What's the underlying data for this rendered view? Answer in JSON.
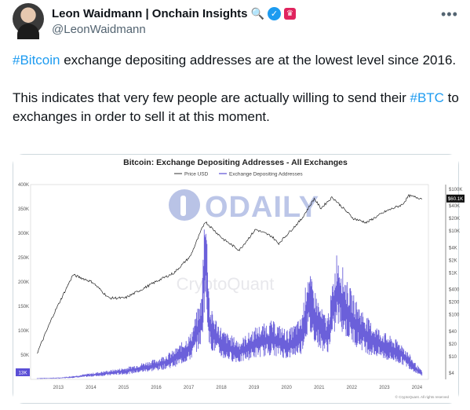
{
  "author": {
    "display_name": "Leon Waidmann | Onchain Insights",
    "handle": "@LeonWaidmann",
    "name_emoji": "🔍",
    "verified_badge_icon": "check-icon",
    "affiliation_badge_icon": "red-square-icon",
    "more_icon": "ellipsis-icon"
  },
  "tweet": {
    "line1_hashtag": "#Bitcoin",
    "line1_rest": " exchange depositing addresses are at the lowest level since 2016.",
    "line2_pre": "This indicates that very few people are actually willing to send their ",
    "line2_hashtag": "#BTC",
    "line2_rest": " to exchanges in order to sell it at this moment."
  },
  "chart_data": {
    "type": "line",
    "title": "Bitcoin: Exchange Depositing Addresses - All Exchanges",
    "legend": [
      "Price USD",
      "Exchange Depositing Addresses"
    ],
    "legend_position": "top",
    "watermark": "CryptoQuant",
    "logo_text": "ODAILY",
    "footer": "© CryptoQuant. All rights reserved",
    "x_ticks": [
      "2013",
      "2014",
      "2015",
      "2016",
      "2017",
      "2018",
      "2019",
      "2020",
      "2021",
      "2022",
      "2023",
      "2024"
    ],
    "y_left_ticks": [
      "400K",
      "350K",
      "300K",
      "250K",
      "200K",
      "150K",
      "100K",
      "50K"
    ],
    "y_left_range": [
      0,
      400000
    ],
    "y_right_ticks": [
      "$100K",
      "$40K",
      "$20K",
      "$10K",
      "$4K",
      "$2K",
      "$1K",
      "$400",
      "$200",
      "$100",
      "$40",
      "$20",
      "$10",
      "$4"
    ],
    "y_right_scale": "log",
    "current_left_label": "13K",
    "current_right_label": "$60.1K",
    "series": [
      {
        "name": "Exchange Depositing Addresses",
        "color": "#5b4fd6",
        "x": [
          2012.8,
          2013.5,
          2014.0,
          2014.5,
          2015.0,
          2015.5,
          2016.0,
          2016.5,
          2017.0,
          2017.5,
          2017.85,
          2017.95,
          2018.1,
          2018.5,
          2019.0,
          2019.5,
          2020.0,
          2020.5,
          2020.9,
          2021.0,
          2021.1,
          2021.3,
          2021.5,
          2021.7,
          2021.9,
          2022.0,
          2022.3,
          2022.6,
          2023.0,
          2023.5,
          2024.0,
          2024.2,
          2024.4,
          2024.6
        ],
        "y": [
          2000,
          3000,
          6000,
          10000,
          14000,
          18000,
          25000,
          32000,
          45000,
          70000,
          130000,
          290000,
          110000,
          75000,
          60000,
          80000,
          90000,
          75000,
          95000,
          130000,
          170000,
          140000,
          110000,
          95000,
          160000,
          200000,
          150000,
          120000,
          90000,
          70000,
          55000,
          40000,
          25000,
          13000
        ]
      },
      {
        "name": "Price USD",
        "color": "#222222",
        "x": [
          2012.8,
          2013.3,
          2013.9,
          2014.5,
          2015.0,
          2015.5,
          2016.0,
          2016.5,
          2017.0,
          2017.5,
          2017.95,
          2018.5,
          2019.0,
          2019.5,
          2020.0,
          2020.2,
          2020.9,
          2021.3,
          2021.5,
          2021.85,
          2022.5,
          2022.9,
          2023.5,
          2024.0,
          2024.2,
          2024.6
        ],
        "y": [
          12,
          100,
          900,
          600,
          250,
          250,
          400,
          650,
          1000,
          2500,
          17000,
          6500,
          3500,
          11000,
          7500,
          5000,
          19000,
          60000,
          35000,
          65000,
          20000,
          16000,
          30000,
          43000,
          70000,
          60100
        ]
      }
    ]
  }
}
